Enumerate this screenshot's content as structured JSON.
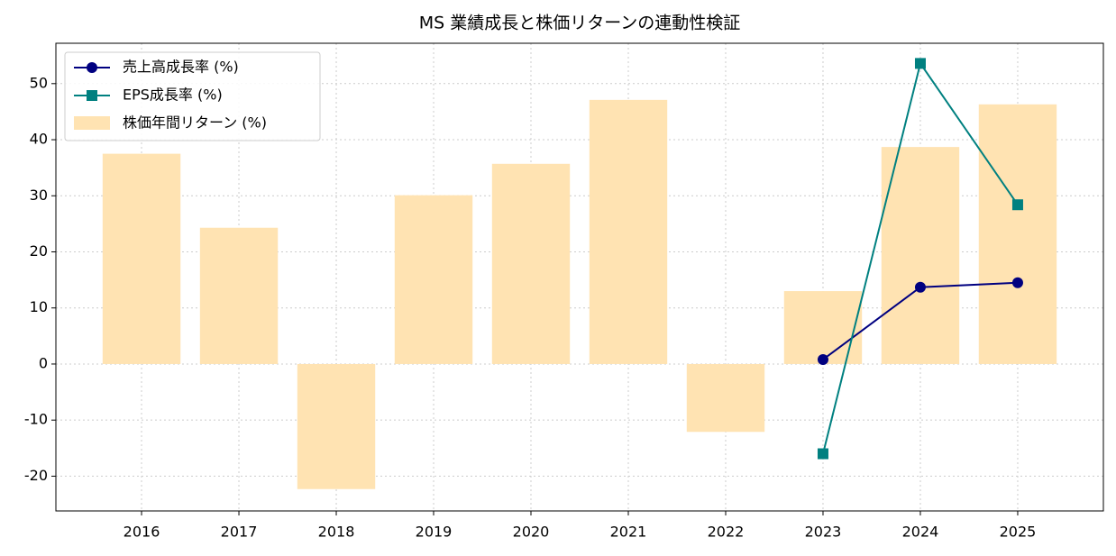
{
  "chart_data": {
    "type": "bar-line",
    "title": "MS 業績成長と株価リターンの連動性検証",
    "categories": [
      "2016",
      "2017",
      "2018",
      "2019",
      "2020",
      "2021",
      "2022",
      "2023",
      "2024",
      "2025"
    ],
    "series": [
      {
        "name": "売上高成長率 (%)",
        "kind": "line",
        "marker": "circle",
        "color": "#000080",
        "values": [
          null,
          null,
          null,
          null,
          null,
          null,
          null,
          0.8,
          13.7,
          14.5
        ]
      },
      {
        "name": "EPS成長率 (%)",
        "kind": "line",
        "marker": "square",
        "color": "#008080",
        "values": [
          null,
          null,
          null,
          null,
          null,
          null,
          null,
          -16.0,
          53.6,
          28.4
        ]
      },
      {
        "name": "株価年間リターン (%)",
        "kind": "bar",
        "color": "#ffe3b2",
        "values": [
          37.5,
          24.3,
          -22.3,
          30.1,
          35.7,
          47.1,
          -12.1,
          13.0,
          38.7,
          46.3
        ]
      }
    ],
    "ylim": [
      -26.2,
      57.2
    ],
    "yticks": [
      -20,
      -10,
      0,
      10,
      20,
      30,
      40,
      50
    ],
    "grid": true,
    "legend": "upper left"
  }
}
